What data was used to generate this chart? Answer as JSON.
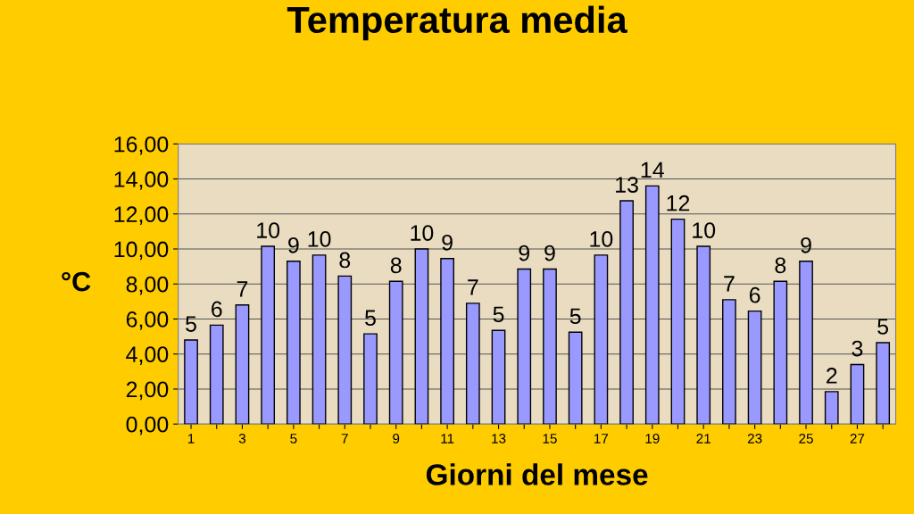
{
  "chart_data": {
    "type": "bar",
    "title": "Temperatura media",
    "xlabel": "Giorni del mese",
    "ylabel": "°C",
    "categories": [
      "1",
      null,
      "3",
      null,
      "5",
      null,
      "7",
      null,
      "9",
      null,
      "11",
      null,
      "13",
      null,
      "15",
      null,
      "17",
      null,
      "19",
      null,
      "21",
      null,
      "23",
      null,
      "25",
      null,
      "27",
      null
    ],
    "values": [
      4.8,
      5.65,
      6.8,
      10.15,
      9.3,
      9.65,
      8.45,
      5.15,
      8.15,
      10.0,
      9.45,
      6.9,
      5.35,
      8.85,
      8.85,
      5.25,
      9.65,
      12.75,
      13.6,
      11.7,
      10.15,
      7.1,
      6.45,
      8.15,
      9.3,
      1.85,
      3.4,
      4.65
    ],
    "value_labels": [
      "5",
      "6",
      "7",
      "10",
      "9",
      "10",
      "8",
      "5",
      "8",
      "10",
      "9",
      "7",
      "5",
      "9",
      "9",
      "5",
      "10",
      "13",
      "14",
      "12",
      "10",
      "7",
      "6",
      "8",
      "9",
      "2",
      "3",
      "5"
    ],
    "color": "#9999ff",
    "ylim": [
      0,
      16
    ],
    "yticks": [
      {
        "value": 0,
        "label": "0,00"
      },
      {
        "value": 2,
        "label": "2,00"
      },
      {
        "value": 4,
        "label": "4,00"
      },
      {
        "value": 6,
        "label": "6,00"
      },
      {
        "value": 8,
        "label": "8,00"
      },
      {
        "value": 10,
        "label": "10,00"
      },
      {
        "value": 12,
        "label": "12,00"
      },
      {
        "value": 14,
        "label": "14,00"
      },
      {
        "value": 16,
        "label": "16,00"
      }
    ],
    "grid": "y",
    "legend": false
  }
}
